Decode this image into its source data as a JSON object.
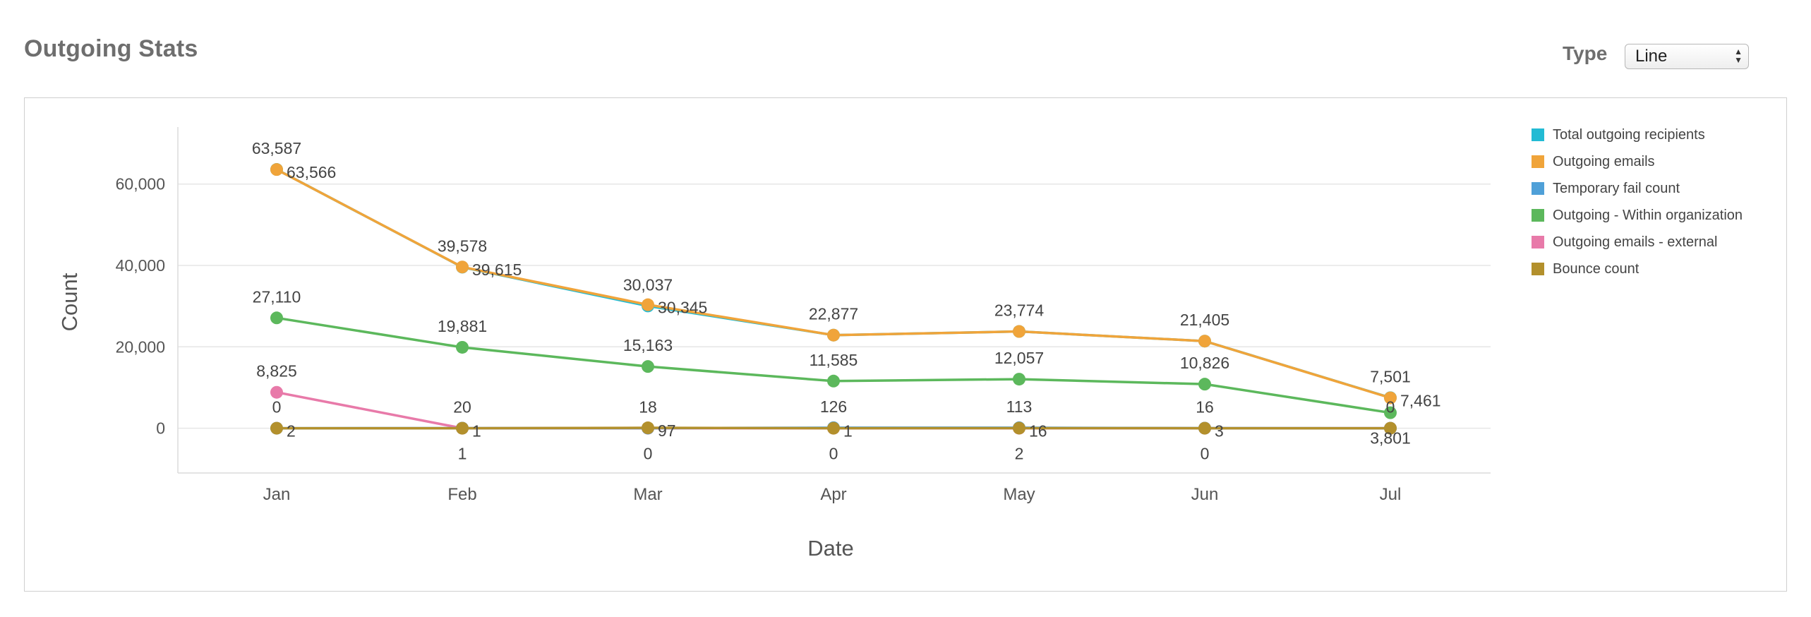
{
  "header": {
    "title": "Outgoing Stats",
    "type_label": "Type",
    "type_value": "Line"
  },
  "chart_data": {
    "type": "line",
    "xlabel": "Date",
    "ylabel": "Count",
    "categories": [
      "Jan",
      "Feb",
      "Mar",
      "Apr",
      "May",
      "Jun",
      "Jul"
    ],
    "ylim": [
      -11000,
      74000
    ],
    "yticks": [
      0,
      20000,
      40000,
      60000
    ],
    "ytick_labels": [
      "0",
      "20,000",
      "40,000",
      "60,000"
    ],
    "grid": "horizontal",
    "legend_position": "top-right",
    "series": [
      {
        "name": "Total outgoing recipients",
        "color": "#22bbd4",
        "values": [
          63587,
          39578,
          30037,
          22877,
          23774,
          21405,
          7501
        ],
        "labels": [
          "63,587",
          "39,578",
          "30,037",
          "22,877",
          "23,774",
          "21,405",
          "7,501"
        ],
        "label_pos": [
          "above",
          "above",
          "above",
          "above",
          "above",
          "above",
          "above"
        ]
      },
      {
        "name": "Outgoing emails",
        "color": "#f0a43a",
        "values": [
          63566,
          39615,
          30345,
          22877,
          23774,
          21405,
          7461
        ],
        "labels": [
          "63,566",
          "39,615",
          "30,345",
          "",
          "",
          "",
          "7,461"
        ],
        "label_pos": [
          "right",
          "right",
          "right",
          "right",
          "right",
          "right",
          "right"
        ]
      },
      {
        "name": "Temporary fail count",
        "color": "#4fa0d8",
        "values": [
          0,
          20,
          18,
          126,
          113,
          16,
          0
        ],
        "labels": [
          "0",
          "20",
          "18",
          "126",
          "113",
          "16",
          "0"
        ],
        "label_pos": [
          "above",
          "above",
          "above",
          "above",
          "above",
          "above",
          "above"
        ]
      },
      {
        "name": "Outgoing - Within organization",
        "color": "#5cb85c",
        "values": [
          27110,
          19881,
          15163,
          11585,
          12057,
          10826,
          3801
        ],
        "labels": [
          "27,110",
          "19,881",
          "15,163",
          "11,585",
          "12,057",
          "10,826",
          "3,801"
        ],
        "label_pos": [
          "above",
          "above",
          "above",
          "above",
          "above",
          "above",
          "below-far"
        ]
      },
      {
        "name": "Outgoing emails - external",
        "color": "#e87aa9",
        "values": [
          8825,
          1,
          0,
          0,
          2,
          0,
          0
        ],
        "labels": [
          "8,825",
          "1",
          "0",
          "0",
          "2",
          "0",
          ""
        ],
        "label_pos": [
          "above",
          "below",
          "below",
          "below",
          "below",
          "below",
          "below"
        ]
      },
      {
        "name": "Bounce count",
        "color": "#b3902c",
        "values": [
          2,
          1,
          97,
          1,
          16,
          3,
          0
        ],
        "labels": [
          "2",
          "1",
          "97",
          "1",
          "16",
          "3",
          ""
        ],
        "label_pos": [
          "right",
          "right",
          "right",
          "right",
          "right",
          "right",
          "right"
        ]
      }
    ]
  }
}
